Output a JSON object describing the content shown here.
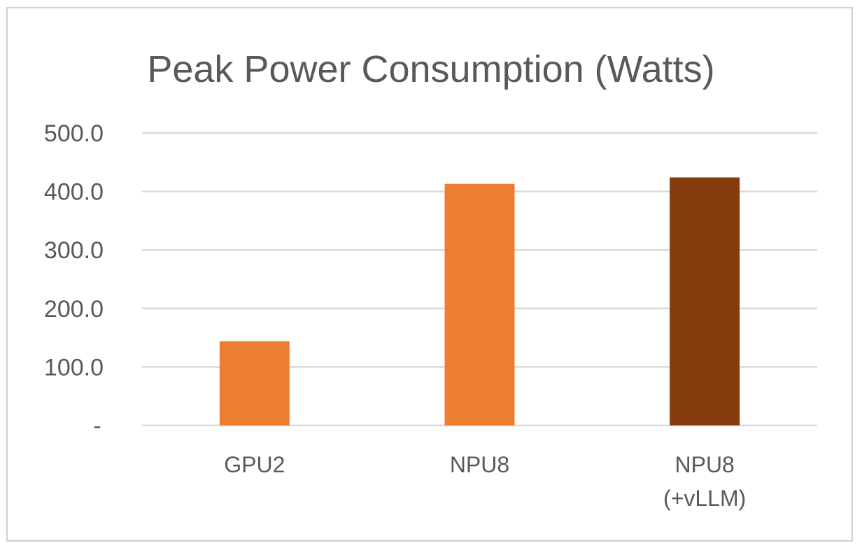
{
  "chart_data": {
    "type": "bar",
    "title": "Peak Power Consumption (Watts)",
    "xlabel": "",
    "ylabel": "",
    "categories": [
      [
        "GPU2"
      ],
      [
        "NPU8"
      ],
      [
        "NPU8",
        "(+vLLM)"
      ]
    ],
    "values": [
      144,
      413,
      424
    ],
    "colors": [
      "#ED7D31",
      "#ED7D31",
      "#843C0C"
    ],
    "ylim": [
      0,
      500
    ],
    "yticks": [
      {
        "value": 0,
        "label": "-"
      },
      {
        "value": 100,
        "label": "100.0"
      },
      {
        "value": 200,
        "label": "200.0"
      },
      {
        "value": 300,
        "label": "300.0"
      },
      {
        "value": 400,
        "label": "400.0"
      },
      {
        "value": 500,
        "label": "500.0"
      }
    ],
    "grid": true,
    "legend": "none"
  }
}
